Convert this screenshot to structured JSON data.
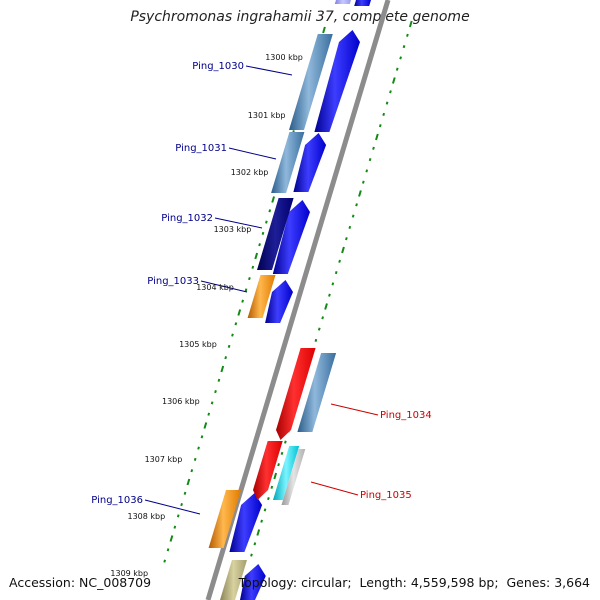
{
  "genome": {
    "title": "Psychromonas ingrahamii 37, complete genome",
    "accession_label": "Accession:",
    "accession": "NC_008709",
    "topology_label": "Topology:",
    "topology": "circular",
    "length_label": "Length:",
    "length": "4,559,598 bp",
    "genes_label": "Genes:",
    "genes": "3,664"
  },
  "colors": {
    "backbone": "#8c8c8c",
    "forward_label": "#00008b",
    "reverse_label": "#cc0000",
    "tick": "#138a13"
  },
  "scale_labels": [
    "1300 kbp",
    "1301 kbp",
    "1302 kbp",
    "1303 kbp",
    "1304 kbp",
    "1305 kbp",
    "1306 kbp",
    "1307 kbp",
    "1308 kbp",
    "1309 kbp"
  ],
  "features": [
    {
      "label": "Ping_1030",
      "strand": "forward"
    },
    {
      "label": "Ping_1031",
      "strand": "forward"
    },
    {
      "label": "Ping_1032",
      "strand": "forward"
    },
    {
      "label": "Ping_1033",
      "strand": "forward"
    },
    {
      "label": "Ping_1034",
      "strand": "reverse"
    },
    {
      "label": "Ping_1035",
      "strand": "reverse"
    },
    {
      "label": "Ping_1036",
      "strand": "forward"
    }
  ]
}
